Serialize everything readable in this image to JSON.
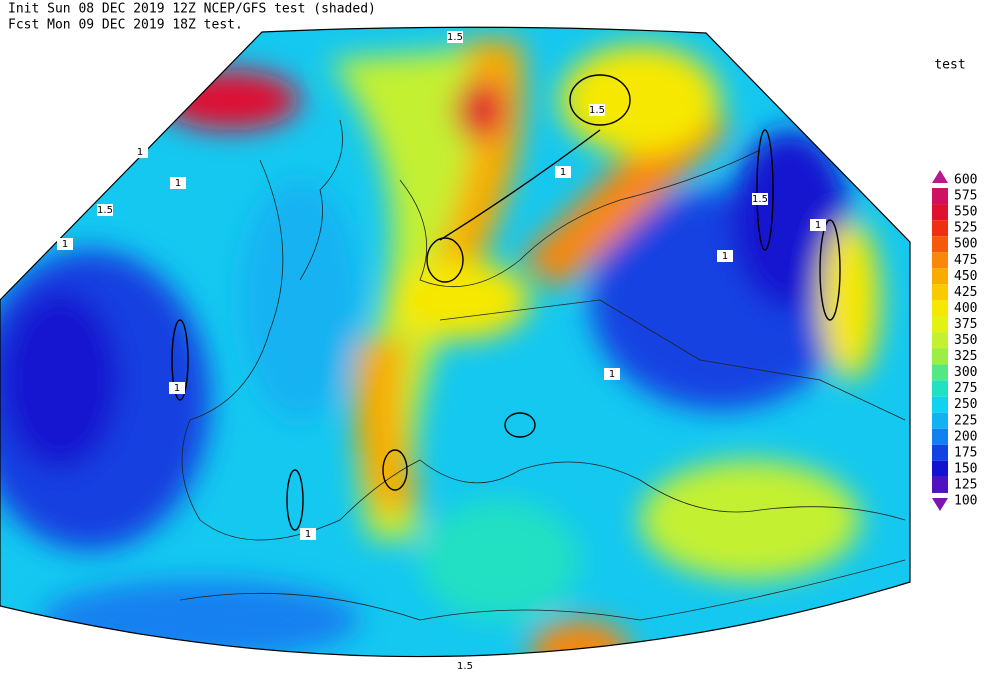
{
  "header": {
    "line1": "Init  Sun 08 DEC 2019 12Z  NCEP/GFS test (shaded)",
    "line2": "Fcst Mon 09 DEC 2019 18Z test."
  },
  "legend": {
    "title": "test",
    "levels": [
      600,
      575,
      550,
      525,
      500,
      475,
      450,
      425,
      400,
      375,
      350,
      325,
      300,
      275,
      250,
      225,
      200,
      175,
      150,
      125,
      100
    ],
    "colors": [
      "#c0168c",
      "#d01060",
      "#e01030",
      "#ee3010",
      "#f45a0a",
      "#f8870a",
      "#f8ac00",
      "#f9ca00",
      "#f6e800",
      "#e2f212",
      "#c4f032",
      "#9aee44",
      "#52e884",
      "#22e0c2",
      "#12d2f2",
      "#12b2f2",
      "#1280f0",
      "#1242e2",
      "#1212d0",
      "#5012c0",
      "#8012b0"
    ]
  },
  "contour_labels": [
    "1.5",
    "1.5",
    "1",
    "1",
    "1.5",
    "1",
    "1",
    "1",
    "1.5",
    "1",
    "1",
    "1",
    "1",
    "1.5"
  ]
}
